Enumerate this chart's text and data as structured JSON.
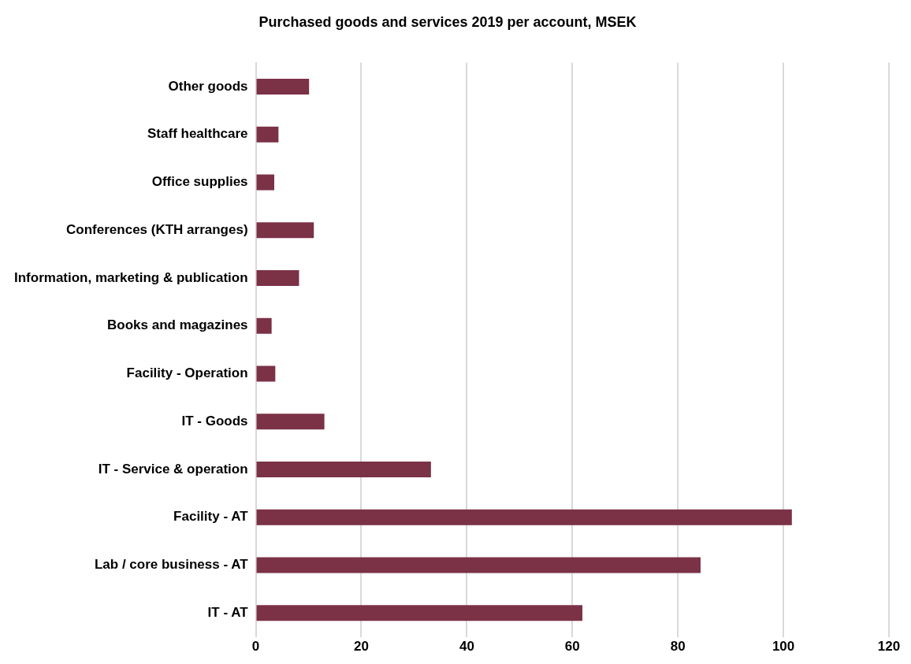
{
  "chart_data": {
    "type": "bar",
    "orientation": "horizontal",
    "title": "Purchased goods and services 2019 per account, MSEK",
    "categories": [
      "Other goods",
      "Staff healthcare",
      "Office supplies",
      "Conferences (KTH arranges)",
      "Information, marketing & publication",
      "Books and magazines",
      "Facility - Operation",
      "IT - Goods",
      "IT - Service & operation",
      "Facility - AT",
      "Lab / core business - AT",
      "IT - AT"
    ],
    "values": [
      10.1,
      4.3,
      3.5,
      11.0,
      8.2,
      3.0,
      3.7,
      13.0,
      33.2,
      101.6,
      84.3,
      61.9
    ],
    "color": "#7b3146",
    "xlim": [
      0,
      120
    ],
    "xticks": [
      0,
      20,
      40,
      60,
      80,
      100,
      120
    ],
    "grid": "x",
    "legend": false
  }
}
